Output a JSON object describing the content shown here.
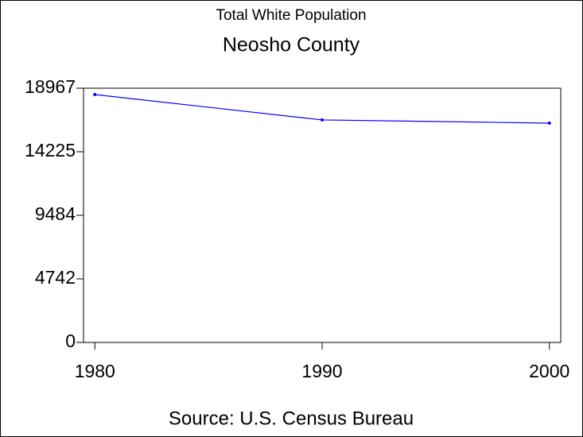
{
  "chart_data": {
    "type": "line",
    "title": "Total White Population",
    "subtitle": "Neosho County",
    "source": "Source: U.S. Census Bureau",
    "x": [
      1980,
      1990,
      2000
    ],
    "series": [
      {
        "color": "#0000ff",
        "values": [
          18490,
          16600,
          16360
        ]
      }
    ],
    "xlim": [
      1979.5,
      2000.5
    ],
    "xticks": [
      1980,
      1990,
      2000
    ],
    "ylim": [
      0,
      18967
    ],
    "yticks": [
      0,
      4742,
      9484,
      14225,
      18967
    ]
  }
}
